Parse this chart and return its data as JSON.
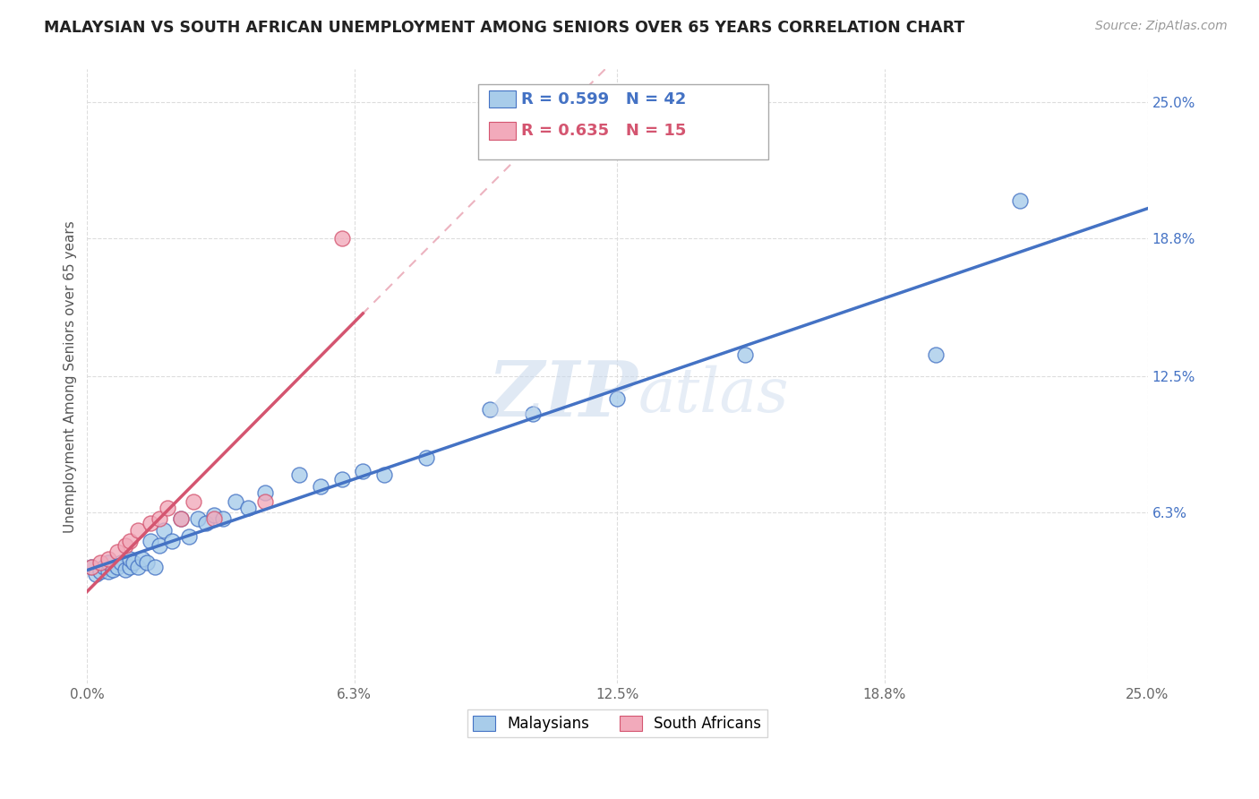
{
  "title": "MALAYSIAN VS SOUTH AFRICAN UNEMPLOYMENT AMONG SENIORS OVER 65 YEARS CORRELATION CHART",
  "source": "Source: ZipAtlas.com",
  "ylabel": "Unemployment Among Seniors over 65 years",
  "xlim": [
    0.0,
    0.25
  ],
  "ylim": [
    -0.015,
    0.265
  ],
  "xtick_labels": [
    "0.0%",
    "6.3%",
    "12.5%",
    "18.8%",
    "25.0%"
  ],
  "xtick_positions": [
    0.0,
    0.063,
    0.125,
    0.188,
    0.25
  ],
  "right_ytick_labels": [
    "6.3%",
    "12.5%",
    "18.8%",
    "25.0%"
  ],
  "right_ytick_positions": [
    0.063,
    0.125,
    0.188,
    0.25
  ],
  "malaysian_color": "#A8CCEA",
  "south_african_color": "#F2AABB",
  "trendline_malaysian_color": "#4472C4",
  "trendline_south_african_color": "#D45570",
  "dashed_line_color": "#E8A0B0",
  "legend_r_malaysian": "R = 0.599",
  "legend_n_malaysian": "N = 42",
  "legend_r_south_african": "R = 0.635",
  "legend_n_south_african": "N = 15",
  "watermark_zip": "ZIP",
  "watermark_atlas": "atlas",
  "background_color": "#FFFFFF",
  "grid_color": "#DDDDDD",
  "malaysian_points": [
    [
      0.001,
      0.038
    ],
    [
      0.002,
      0.035
    ],
    [
      0.003,
      0.036
    ],
    [
      0.004,
      0.038
    ],
    [
      0.005,
      0.036
    ],
    [
      0.005,
      0.04
    ],
    [
      0.006,
      0.037
    ],
    [
      0.007,
      0.038
    ],
    [
      0.008,
      0.04
    ],
    [
      0.009,
      0.037
    ],
    [
      0.01,
      0.038
    ],
    [
      0.01,
      0.042
    ],
    [
      0.011,
      0.04
    ],
    [
      0.012,
      0.038
    ],
    [
      0.013,
      0.042
    ],
    [
      0.014,
      0.04
    ],
    [
      0.015,
      0.05
    ],
    [
      0.016,
      0.038
    ],
    [
      0.017,
      0.048
    ],
    [
      0.018,
      0.055
    ],
    [
      0.02,
      0.05
    ],
    [
      0.022,
      0.06
    ],
    [
      0.024,
      0.052
    ],
    [
      0.026,
      0.06
    ],
    [
      0.028,
      0.058
    ],
    [
      0.03,
      0.062
    ],
    [
      0.032,
      0.06
    ],
    [
      0.035,
      0.068
    ],
    [
      0.038,
      0.065
    ],
    [
      0.042,
      0.072
    ],
    [
      0.05,
      0.08
    ],
    [
      0.055,
      0.075
    ],
    [
      0.06,
      0.078
    ],
    [
      0.065,
      0.082
    ],
    [
      0.07,
      0.08
    ],
    [
      0.08,
      0.088
    ],
    [
      0.095,
      0.11
    ],
    [
      0.105,
      0.108
    ],
    [
      0.125,
      0.115
    ],
    [
      0.155,
      0.135
    ],
    [
      0.2,
      0.135
    ],
    [
      0.22,
      0.205
    ]
  ],
  "south_african_points": [
    [
      0.001,
      0.038
    ],
    [
      0.003,
      0.04
    ],
    [
      0.005,
      0.042
    ],
    [
      0.007,
      0.045
    ],
    [
      0.009,
      0.048
    ],
    [
      0.01,
      0.05
    ],
    [
      0.012,
      0.055
    ],
    [
      0.015,
      0.058
    ],
    [
      0.017,
      0.06
    ],
    [
      0.019,
      0.065
    ],
    [
      0.022,
      0.06
    ],
    [
      0.025,
      0.068
    ],
    [
      0.03,
      0.06
    ],
    [
      0.042,
      0.068
    ],
    [
      0.06,
      0.188
    ]
  ]
}
